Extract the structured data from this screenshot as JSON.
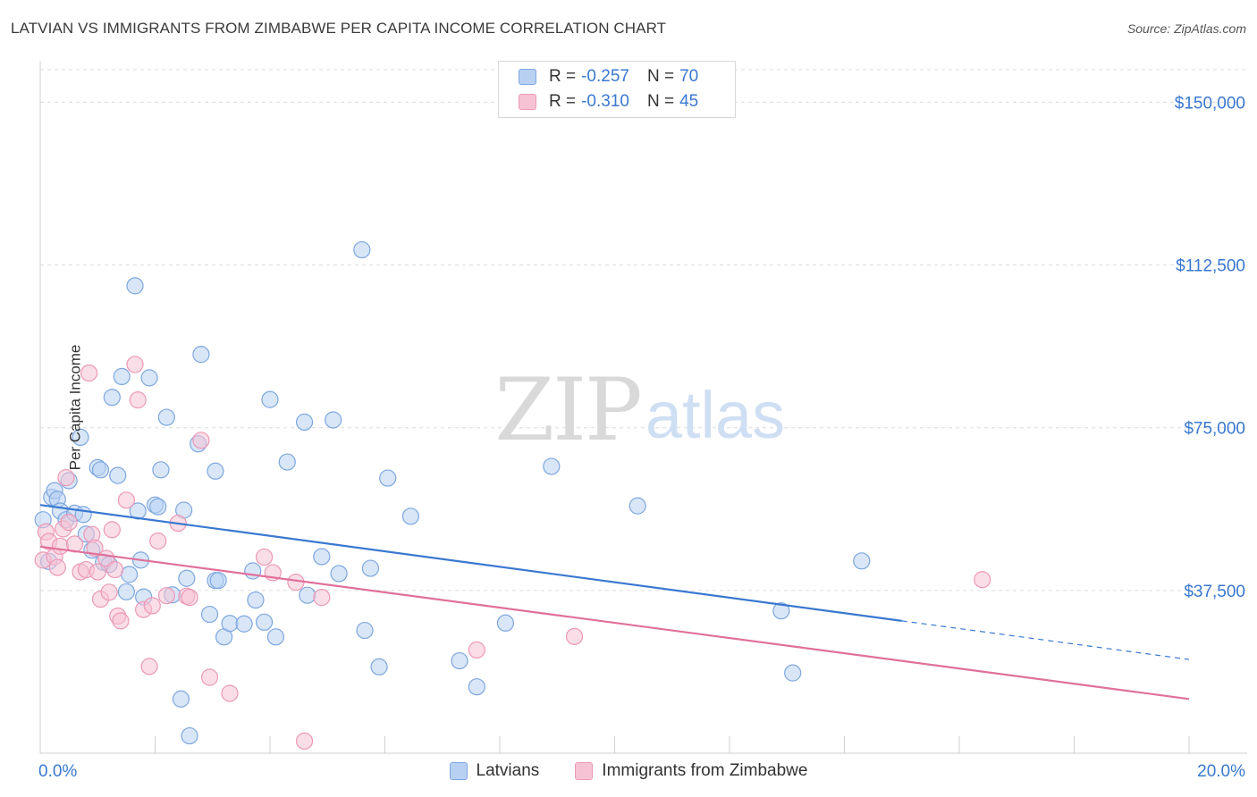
{
  "title": "LATVIAN VS IMMIGRANTS FROM ZIMBABWE PER CAPITA INCOME CORRELATION CHART",
  "source": "Source: ZipAtlas.com",
  "watermark": {
    "zip": "ZIP",
    "atlas": "atlas"
  },
  "legend": {
    "r_label": "R =",
    "n_label": "N =",
    "series1": {
      "r": "-0.257",
      "n": "70"
    },
    "series2": {
      "r": "-0.310",
      "n": "45"
    }
  },
  "bottom_legend": {
    "series1": "Latvians",
    "series2": "Immigrants from Zimbabwe"
  },
  "colors": {
    "blue": "#3a78d0",
    "blue_fill": "#b8d1f3",
    "blue_stroke": "#7ea7df",
    "pink": "#e0709a",
    "pink_fill": "#f6c3d4",
    "pink_stroke": "#ec98b6",
    "grid": "#dcdcdc"
  },
  "chart_data": {
    "type": "scatter",
    "title": "LATVIAN VS IMMIGRANTS FROM ZIMBABWE PER CAPITA INCOME CORRELATION CHART",
    "xlabel": "",
    "ylabel": "Per Capita Income",
    "xlim": [
      0,
      20
    ],
    "ylim": [
      0,
      157500
    ],
    "x_tick_labels": [
      "0.0%",
      "20.0%"
    ],
    "y_ticks": [
      37500,
      75000,
      112500,
      150000
    ],
    "y_tick_labels": [
      "$37,500",
      "$75,000",
      "$112,500",
      "$150,000"
    ],
    "grid": true,
    "series": [
      {
        "name": "Latvians",
        "r": -0.257,
        "n": 70,
        "trend": {
          "x0": 0,
          "y0": 57200,
          "x1": 15,
          "y1": 30500,
          "dash_to_x": 20,
          "dash_to_y": 21600
        },
        "points": [
          [
            0.05,
            53800
          ],
          [
            0.15,
            44200
          ],
          [
            0.2,
            59000
          ],
          [
            0.25,
            60500
          ],
          [
            0.3,
            58500
          ],
          [
            0.35,
            55800
          ],
          [
            0.45,
            53800
          ],
          [
            0.5,
            62800
          ],
          [
            0.6,
            55300
          ],
          [
            0.7,
            72800
          ],
          [
            0.75,
            55000
          ],
          [
            0.8,
            50500
          ],
          [
            0.9,
            46800
          ],
          [
            1.0,
            65800
          ],
          [
            1.05,
            65300
          ],
          [
            1.1,
            44000
          ],
          [
            1.2,
            43500
          ],
          [
            1.25,
            82000
          ],
          [
            1.35,
            64000
          ],
          [
            1.42,
            86800
          ],
          [
            1.5,
            37200
          ],
          [
            1.55,
            41200
          ],
          [
            1.65,
            107700
          ],
          [
            1.7,
            55800
          ],
          [
            1.75,
            44500
          ],
          [
            1.8,
            36000
          ],
          [
            1.9,
            86500
          ],
          [
            2.0,
            57200
          ],
          [
            2.05,
            56800
          ],
          [
            2.1,
            65300
          ],
          [
            2.2,
            77400
          ],
          [
            2.3,
            36500
          ],
          [
            2.45,
            12500
          ],
          [
            2.5,
            56000
          ],
          [
            2.55,
            40300
          ],
          [
            2.6,
            4000
          ],
          [
            2.75,
            71300
          ],
          [
            2.8,
            91900
          ],
          [
            2.95,
            32000
          ],
          [
            3.05,
            39800
          ],
          [
            3.05,
            65000
          ],
          [
            3.1,
            39800
          ],
          [
            3.2,
            26800
          ],
          [
            3.3,
            29900
          ],
          [
            3.55,
            29800
          ],
          [
            3.7,
            42000
          ],
          [
            3.75,
            35300
          ],
          [
            3.9,
            30200
          ],
          [
            4.0,
            81500
          ],
          [
            4.1,
            26800
          ],
          [
            4.3,
            67100
          ],
          [
            4.6,
            76300
          ],
          [
            4.65,
            36400
          ],
          [
            4.9,
            45300
          ],
          [
            5.1,
            76800
          ],
          [
            5.2,
            41400
          ],
          [
            5.6,
            116000
          ],
          [
            5.65,
            28300
          ],
          [
            5.75,
            42600
          ],
          [
            5.9,
            19900
          ],
          [
            6.05,
            63400
          ],
          [
            6.45,
            54600
          ],
          [
            7.3,
            21300
          ],
          [
            7.6,
            15300
          ],
          [
            8.1,
            30000
          ],
          [
            8.9,
            66100
          ],
          [
            10.4,
            57000
          ],
          [
            12.9,
            32800
          ],
          [
            13.1,
            18500
          ],
          [
            14.3,
            44300
          ]
        ]
      },
      {
        "name": "Immigrants from Zimbabwe",
        "r": -0.31,
        "n": 45,
        "trend": {
          "x0": 0,
          "y0": 47600,
          "x1": 20,
          "y1": 12500
        },
        "points": [
          [
            0.05,
            44500
          ],
          [
            0.1,
            51000
          ],
          [
            0.15,
            48800
          ],
          [
            0.25,
            45300
          ],
          [
            0.3,
            42800
          ],
          [
            0.35,
            47700
          ],
          [
            0.4,
            51700
          ],
          [
            0.45,
            63500
          ],
          [
            0.5,
            53200
          ],
          [
            0.6,
            48200
          ],
          [
            0.7,
            41800
          ],
          [
            0.8,
            42300
          ],
          [
            0.85,
            87600
          ],
          [
            0.9,
            50400
          ],
          [
            0.95,
            47300
          ],
          [
            1.0,
            41800
          ],
          [
            1.05,
            35500
          ],
          [
            1.15,
            44900
          ],
          [
            1.2,
            37100
          ],
          [
            1.25,
            51500
          ],
          [
            1.3,
            42300
          ],
          [
            1.35,
            31600
          ],
          [
            1.4,
            30500
          ],
          [
            1.5,
            58300
          ],
          [
            1.65,
            89600
          ],
          [
            1.7,
            81400
          ],
          [
            1.8,
            33100
          ],
          [
            1.9,
            20000
          ],
          [
            1.95,
            34000
          ],
          [
            2.05,
            48900
          ],
          [
            2.2,
            36300
          ],
          [
            2.4,
            53000
          ],
          [
            2.55,
            36200
          ],
          [
            2.6,
            35900
          ],
          [
            2.8,
            72100
          ],
          [
            2.95,
            17500
          ],
          [
            3.3,
            13800
          ],
          [
            3.9,
            45200
          ],
          [
            4.05,
            41600
          ],
          [
            4.45,
            39400
          ],
          [
            4.6,
            2800
          ],
          [
            4.9,
            35900
          ],
          [
            7.6,
            23800
          ],
          [
            9.3,
            26900
          ],
          [
            16.4,
            40000
          ]
        ]
      }
    ]
  }
}
